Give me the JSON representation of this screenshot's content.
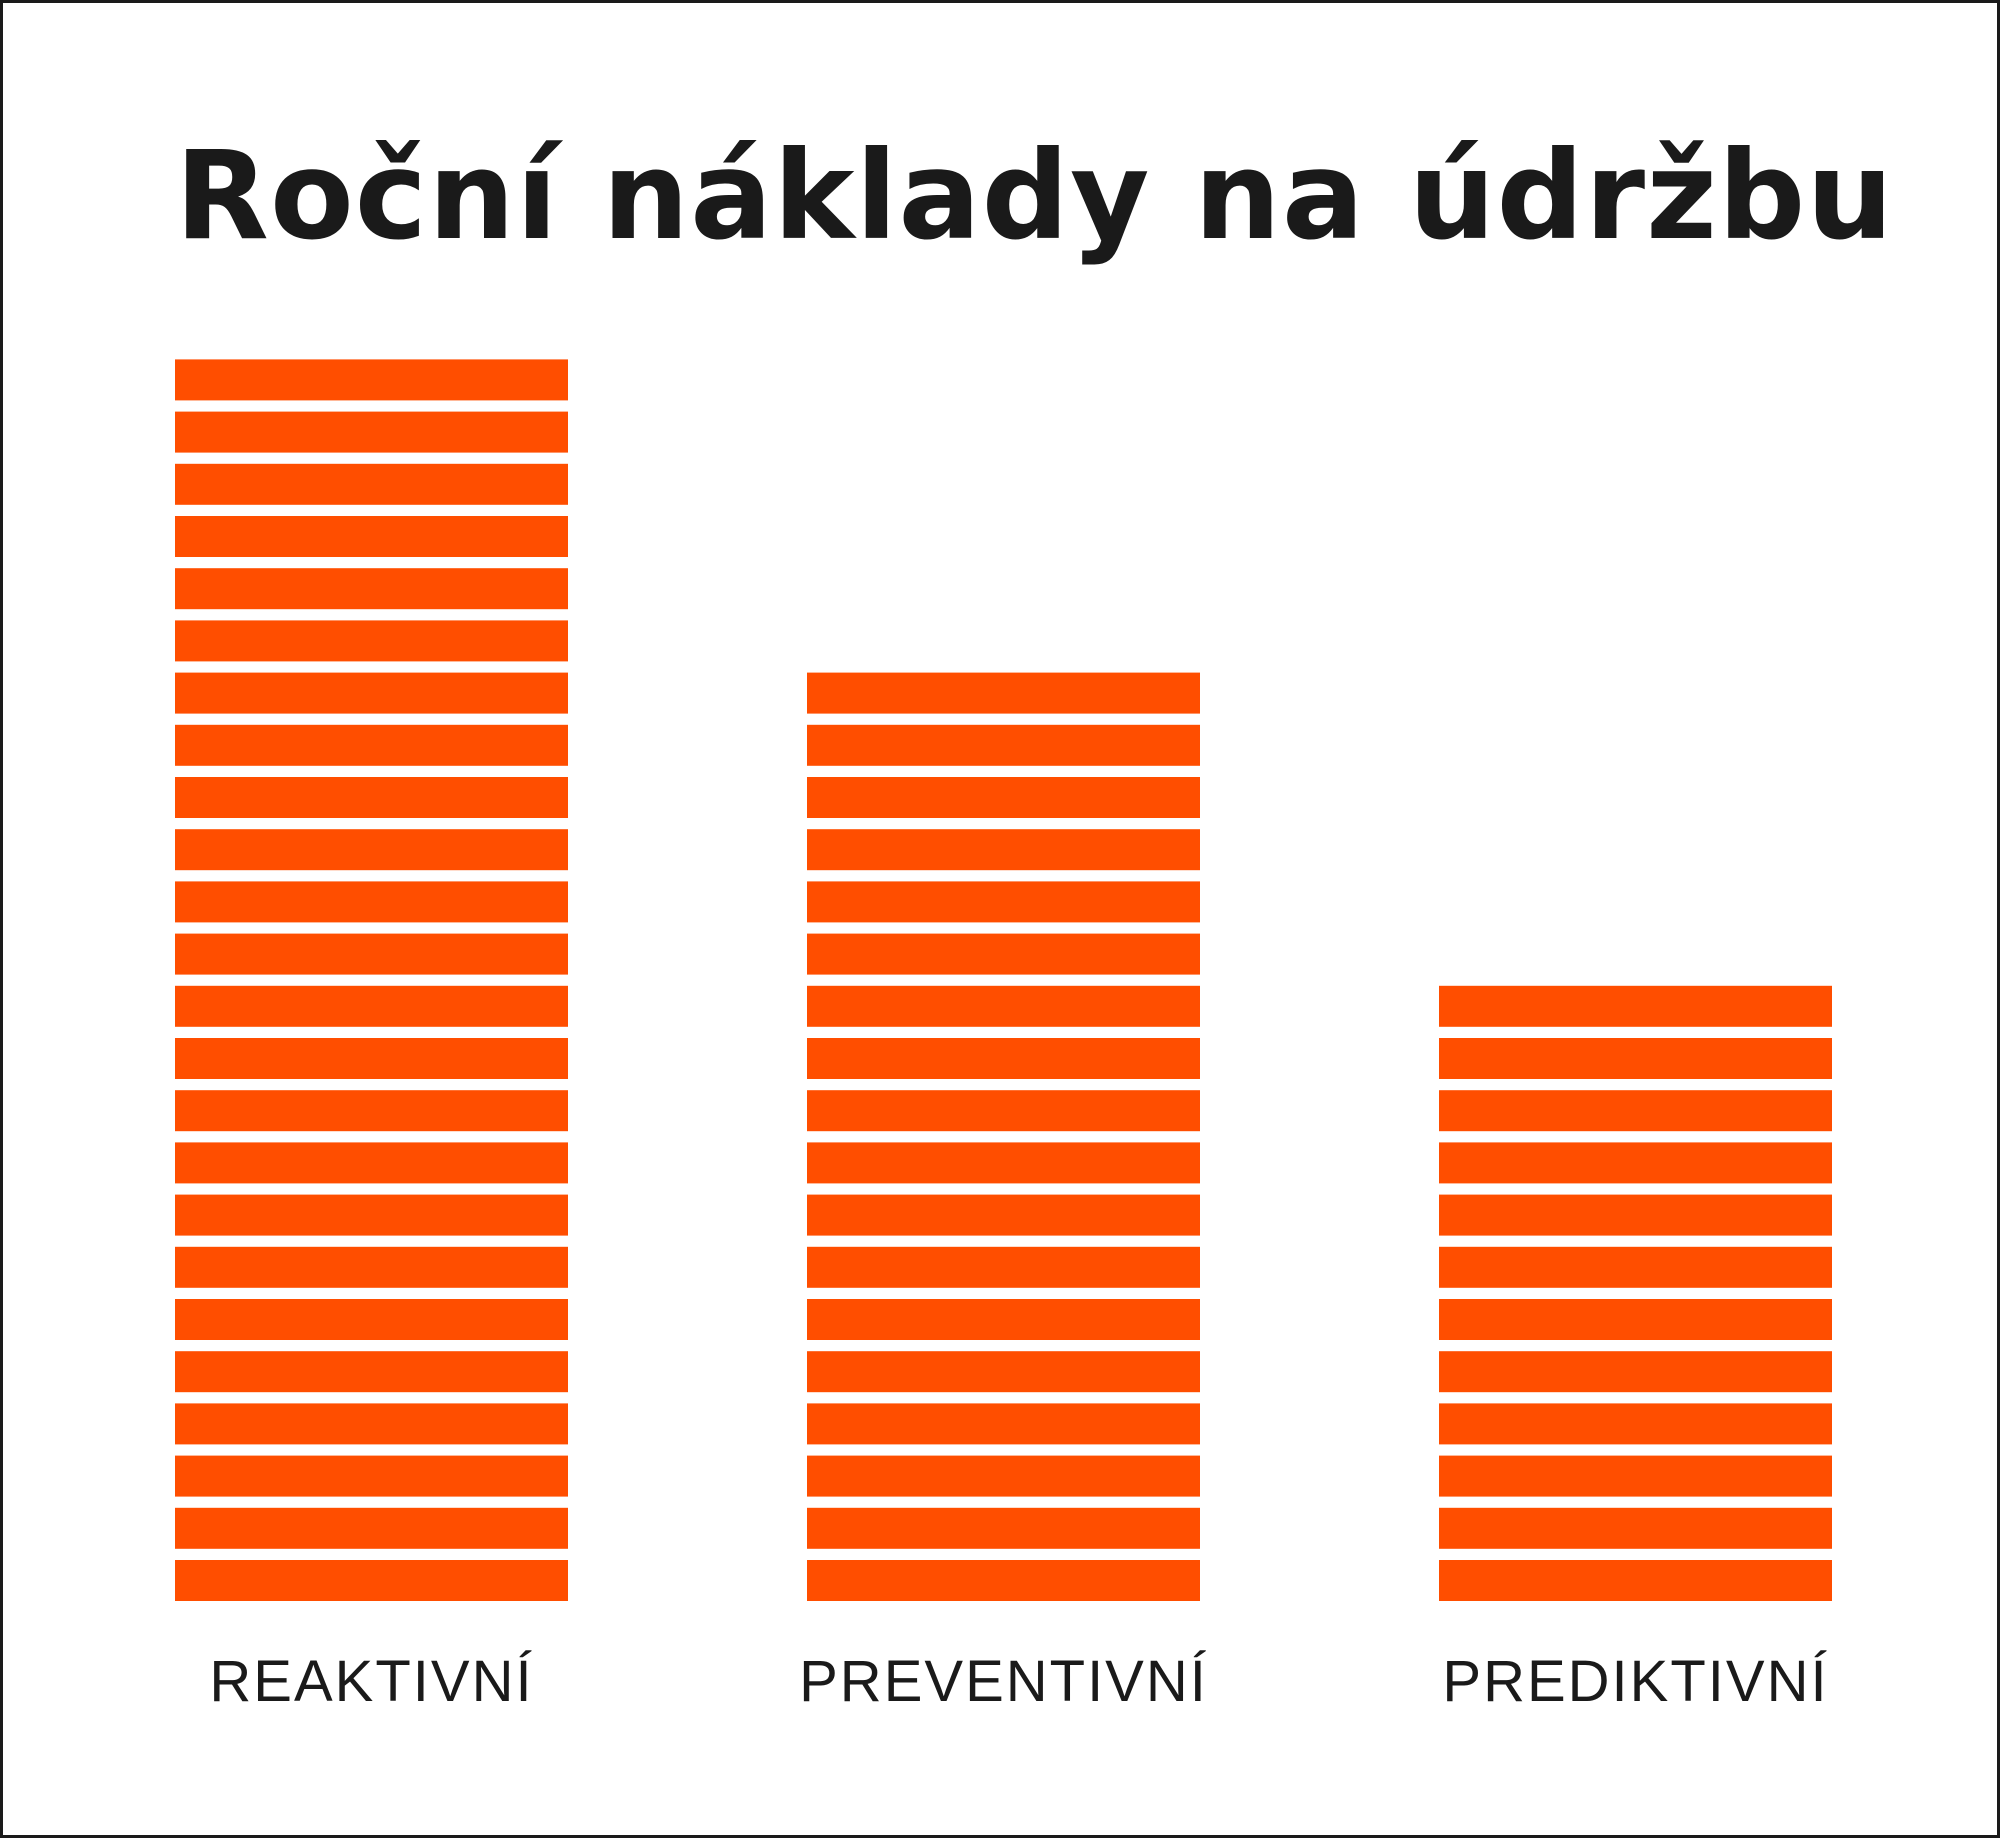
{
  "chart_data": {
    "type": "bar",
    "title": "Roční náklady na údržbu",
    "categories": [
      "REAKTIVNÍ",
      "PREVENTIVNÍ",
      "PREDIKTIVNÍ"
    ],
    "values": [
      24,
      18,
      12
    ],
    "bar_color": "#FF4E00",
    "segment_gap_color": "#ffffff",
    "grid": false,
    "legend": "none",
    "xlabel": "",
    "ylabel": ""
  }
}
